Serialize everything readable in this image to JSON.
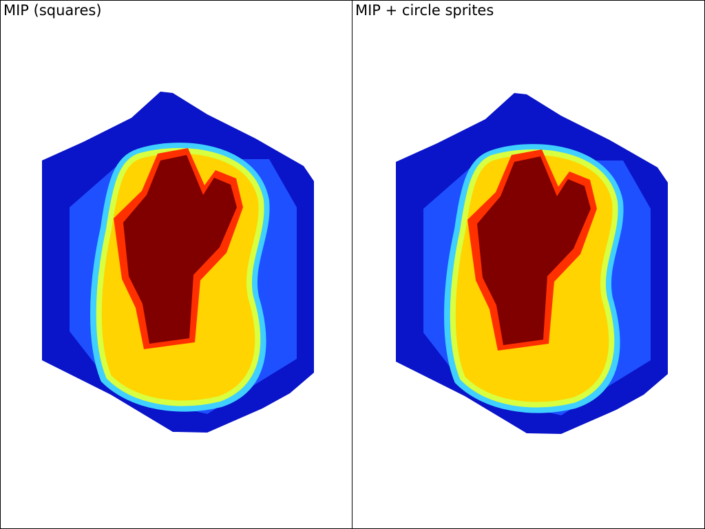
{
  "panels": [
    {
      "title": "MIP (squares)",
      "sprite": "squares"
    },
    {
      "title": "MIP + circle sprites",
      "sprite": "circles"
    }
  ],
  "colormap": {
    "low": "#0a14c8",
    "mid_low": "#1e50ff",
    "edge": "#40d0ff",
    "mid": "#d8ff40",
    "high": "#ffd400",
    "hot": "#ff3000",
    "max": "#800000"
  }
}
